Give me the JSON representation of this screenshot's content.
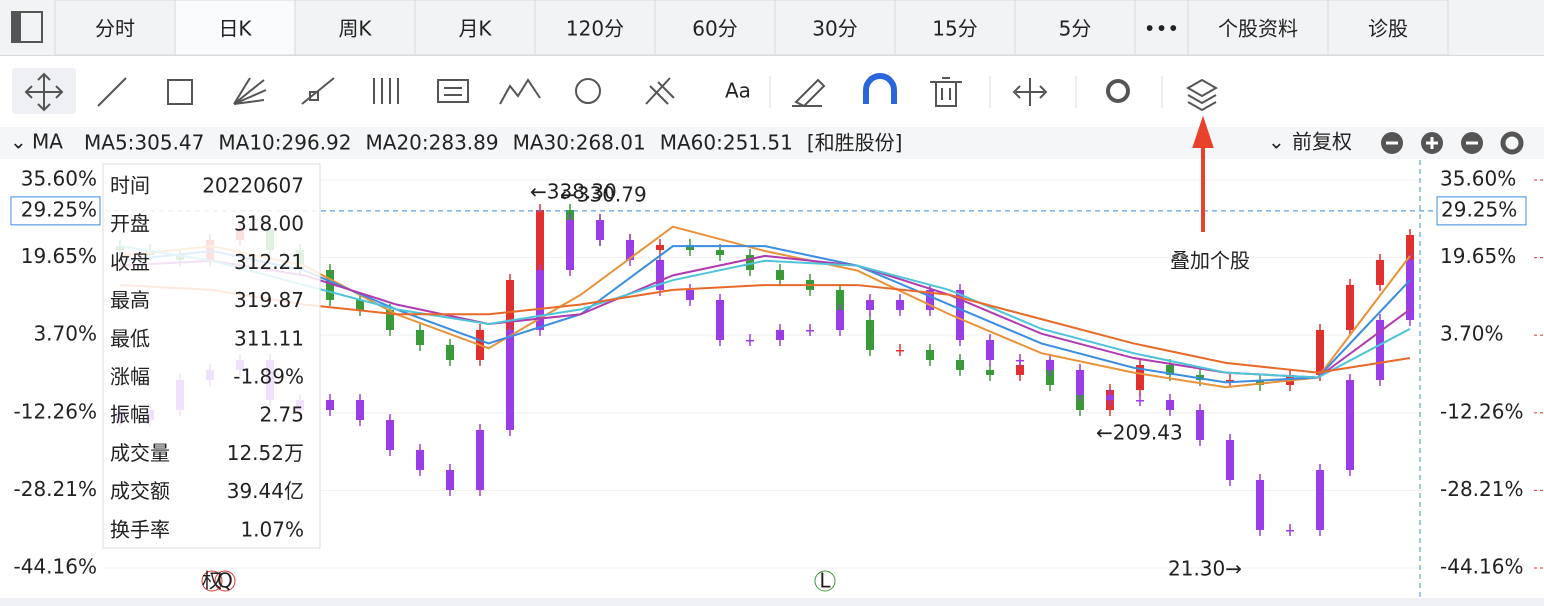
{
  "tabs": [
    "分时",
    "日K",
    "周K",
    "月K",
    "120分",
    "60分",
    "30分",
    "15分",
    "5分",
    "•••",
    "个股资料",
    "诊股"
  ],
  "ma_bar": {
    "title": "MA",
    "items": [
      {
        "text": "MA5:305.47",
        "color": "#e8923a"
      },
      {
        "text": "MA10:296.92",
        "color": "#3b8de0"
      },
      {
        "text": "MA20:283.89",
        "color": "#b03bb0"
      },
      {
        "text": "MA30:268.01",
        "color": "#3fbcd0"
      },
      {
        "text": "MA60:251.51",
        "color": "#e8662a"
      },
      {
        "text": "[和胜股份]",
        "color": "#9b3de6"
      }
    ],
    "adjust": "前复权"
  },
  "tooltip": {
    "rows": [
      {
        "label": "时间",
        "value": "20220607",
        "color": "#222"
      },
      {
        "label": "开盘",
        "value": "318.00",
        "color": "#3a9a3a"
      },
      {
        "label": "收盘",
        "value": "312.21",
        "color": "#3a9a3a"
      },
      {
        "label": "最高",
        "value": "319.87",
        "color": "#e0312f"
      },
      {
        "label": "最低",
        "value": "311.11",
        "color": "#3a9a3a"
      },
      {
        "label": "涨幅",
        "value": "-1.89%",
        "color": "#3a9a3a"
      },
      {
        "label": "振幅",
        "value": "2.75",
        "color": "#222"
      },
      {
        "label": "成交量",
        "value": "12.52万",
        "color": "#222"
      },
      {
        "label": "成交额",
        "value": "39.44亿",
        "color": "#222"
      },
      {
        "label": "换手率",
        "value": "1.07%",
        "color": "#222"
      }
    ]
  },
  "callout": "叠加个股",
  "markers": [
    "权",
    "Q",
    "L"
  ],
  "chart_data": {
    "type": "candlestick",
    "ylim": [
      -48.68,
      38.68
    ],
    "yticks": [
      {
        "value": 35.6,
        "label": "35.60%"
      },
      {
        "value": 19.65,
        "label": "19.65%"
      },
      {
        "value": 3.7,
        "label": "3.70%"
      },
      {
        "value": -12.26,
        "label": "-12.26%"
      },
      {
        "value": -28.21,
        "label": "-28.21%"
      },
      {
        "value": -44.16,
        "label": "-44.16%"
      }
    ],
    "crosshair": {
      "value": 29.25,
      "label": "29.25%"
    },
    "grid": true,
    "annotations": [
      "←338.30",
      "←330.79",
      "←209.43",
      "21.30→"
    ],
    "candles": [
      {
        "up_color": "#e0312f",
        "down_color": "#3a9a3a",
        "open": [
          22.0,
          21.21,
          20.18,
          19.16,
          23.27,
          25.32,
          21.21,
          17.1,
          10.93,
          8.88,
          4.77,
          1.68,
          -1.4,
          4.77,
          15.05,
          29.43,
          27.38,
          23.27,
          21.21,
          22.24,
          21.21,
          20.18,
          17.1,
          15.05,
          13.0,
          6.82,
          0.66,
          0.66,
          -1.4,
          -3.45,
          -4.48,
          -2.43,
          -6.54,
          -11.68,
          -7.57,
          -2.43,
          -4.48,
          -5.51,
          -5.51,
          -6.54,
          -4.48,
          4.77,
          14.02,
          19.16
        ],
        "close": [
          21.21,
          20.18,
          19.16,
          23.27,
          25.32,
          21.21,
          17.1,
          10.93,
          8.88,
          4.77,
          1.68,
          -1.4,
          4.77,
          15.05,
          29.43,
          27.38,
          23.27,
          21.21,
          22.24,
          21.21,
          20.18,
          17.1,
          15.05,
          13.0,
          6.82,
          0.66,
          0.66,
          -1.4,
          -3.45,
          -4.48,
          -2.43,
          -6.54,
          -11.68,
          -7.57,
          -2.43,
          -4.48,
          -5.51,
          -5.51,
          -6.54,
          -4.48,
          4.77,
          14.02,
          19.16,
          24.29
        ]
      },
      {
        "up_color": "#9b3de6",
        "down_color": "#9b3de6",
        "open": [
          -12.0,
          -13.73,
          -11.68,
          -5.51,
          -3.45,
          -1.4,
          -9.62,
          -11.68,
          -9.62,
          -13.73,
          -19.9,
          -24.01,
          -28.12,
          -15.79,
          4.77,
          17.1,
          27.38,
          23.27,
          19.16,
          12.99,
          10.93,
          2.71,
          2.71,
          4.77,
          4.77,
          8.88,
          10.93,
          8.88,
          12.99,
          2.71,
          -1.4,
          -1.4,
          -3.45,
          -8.59,
          -9.62,
          -9.62,
          -11.68,
          -17.84,
          -26.07,
          -36.34,
          -36.34,
          -24.01,
          -5.51,
          6.82
        ],
        "close": [
          -13.73,
          -11.68,
          -5.51,
          -3.45,
          -1.4,
          -9.62,
          -11.68,
          -9.62,
          -13.73,
          -19.9,
          -24.01,
          -28.12,
          -15.79,
          4.77,
          17.1,
          27.38,
          23.27,
          19.16,
          12.99,
          10.93,
          2.71,
          2.71,
          4.77,
          4.77,
          8.88,
          10.93,
          8.88,
          12.99,
          2.71,
          -1.4,
          -1.4,
          -3.45,
          -8.59,
          -9.62,
          -9.62,
          -11.68,
          -17.84,
          -26.07,
          -36.34,
          -36.34,
          -24.01,
          -5.51,
          6.82,
          19.16
        ]
      }
    ],
    "lines": [
      {
        "color": "#e8923a",
        "values": [
          20,
          22,
          18,
          8,
          1,
          12,
          26,
          21,
          17,
          8,
          0,
          -4,
          -7,
          -5,
          20
        ]
      },
      {
        "color": "#3b8de0",
        "values": [
          19,
          21,
          17,
          9,
          2,
          8,
          22,
          22,
          18,
          10,
          2,
          -3,
          -6,
          -5,
          15
        ]
      },
      {
        "color": "#b03bb0",
        "values": [
          18,
          19,
          16,
          10,
          6,
          8,
          16,
          20,
          18,
          12,
          4,
          -1,
          -4,
          -5,
          9
        ]
      },
      {
        "color": "#4fc4d6",
        "values": [
          22,
          19,
          14,
          9,
          6,
          9,
          15,
          19,
          18,
          13,
          5,
          0,
          -4,
          -5,
          5
        ]
      },
      {
        "color": "#e86a2a",
        "values": [
          14,
          13,
          10,
          8,
          8,
          10,
          13,
          14,
          14,
          12,
          7,
          2,
          -2,
          -4,
          -1
        ]
      }
    ]
  }
}
